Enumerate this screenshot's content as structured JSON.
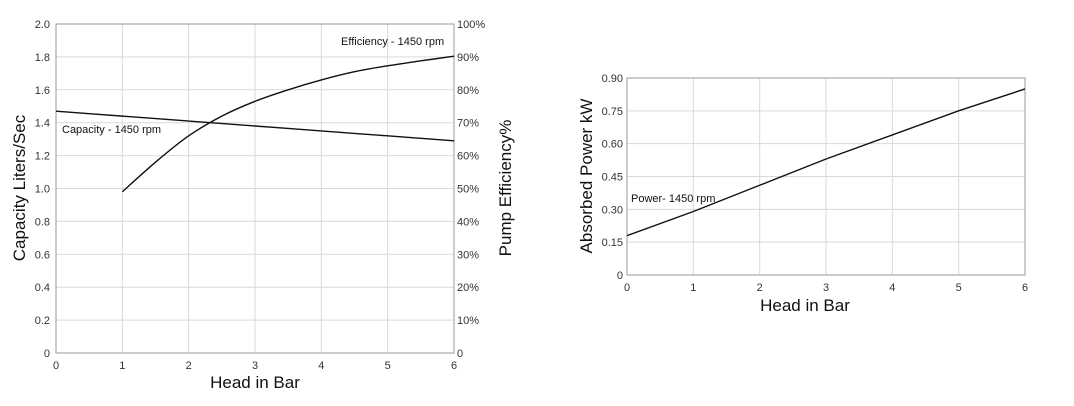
{
  "chart_data": [
    {
      "type": "line",
      "title": "",
      "xlabel": "Head in Bar",
      "ylabel": "Capacity Liters/Sec",
      "ylabel_right": "Pump Efficiency%",
      "xlim": [
        0,
        6
      ],
      "ylim": [
        0,
        2.0
      ],
      "ylim_right": [
        0,
        100
      ],
      "x_ticks": [
        "0",
        "1",
        "2",
        "3",
        "4",
        "5",
        "6"
      ],
      "y_ticks": [
        "0",
        "0.2",
        "0.4",
        "0.6",
        "0.8",
        "1.0",
        "1.2",
        "1.4",
        "1.6",
        "1.8",
        "2.0"
      ],
      "y_ticks_right": [
        "0",
        "10%",
        "20%",
        "30%",
        "40%",
        "50%",
        "60%",
        "70%",
        "80%",
        "90%",
        "100%"
      ],
      "grid": true,
      "series": [
        {
          "name": "Capacity - 1450 rpm",
          "axis": "left",
          "x": [
            0,
            1,
            2,
            3,
            4,
            5,
            6
          ],
          "y": [
            1.47,
            1.44,
            1.41,
            1.38,
            1.35,
            1.32,
            1.29
          ]
        },
        {
          "name": "Efficiency - 1450 rpm",
          "axis": "right",
          "x": [
            1.0,
            1.5,
            2.0,
            2.5,
            3.0,
            3.5,
            4.0,
            4.5,
            5.0,
            5.5,
            6.0
          ],
          "y": [
            49,
            58,
            66,
            72,
            76.5,
            80,
            83,
            85.5,
            87.3,
            88.8,
            90.2
          ]
        }
      ],
      "annotations": [
        "Capacity - 1450 rpm",
        "Efficiency - 1450 rpm"
      ]
    },
    {
      "type": "line",
      "title": "",
      "xlabel": "Head in Bar",
      "ylabel": "Absorbed Power kW",
      "xlim": [
        0,
        6
      ],
      "ylim": [
        0,
        0.9
      ],
      "x_ticks": [
        "0",
        "1",
        "2",
        "3",
        "4",
        "5",
        "6"
      ],
      "y_ticks": [
        "0",
        "0.15",
        "0.30",
        "0.45",
        "0.60",
        "0.75",
        "0.90"
      ],
      "grid": true,
      "series": [
        {
          "name": "Power- 1450 rpm",
          "axis": "left",
          "x": [
            0,
            1,
            2,
            3,
            4,
            5,
            6
          ],
          "y": [
            0.18,
            0.29,
            0.41,
            0.53,
            0.64,
            0.75,
            0.85
          ]
        }
      ],
      "annotations": [
        "Power- 1450 rpm"
      ]
    }
  ]
}
